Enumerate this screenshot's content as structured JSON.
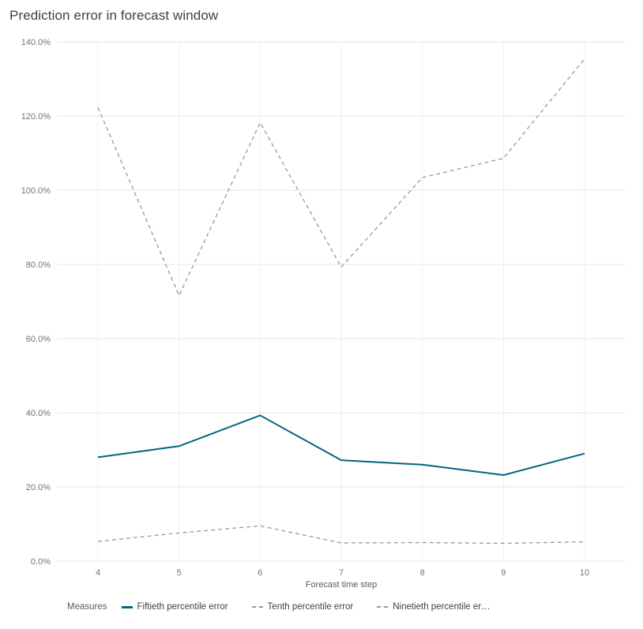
{
  "title": "Prediction error in forecast window",
  "chart_data": {
    "type": "line",
    "title": "Prediction error in forecast window",
    "x": [
      4,
      5,
      6,
      7,
      8,
      9,
      10
    ],
    "xlabel": "Forecast time step",
    "ylabel": "",
    "ylim": [
      0,
      140
    ],
    "ytick_step": 20,
    "ytick_format": "percent-one-decimal",
    "grid": true,
    "legend_position": "bottom",
    "legend_title": "Measures",
    "series": [
      {
        "name": "Fiftieth percentile error",
        "legend_label": "Fiftieth percentile error",
        "color": "#006580",
        "dash": "solid",
        "values": [
          28.0,
          31.0,
          39.3,
          27.2,
          26.0,
          23.2,
          29.0
        ]
      },
      {
        "name": "Tenth percentile error",
        "legend_label": "Tenth percentile error",
        "color": "#999999",
        "dash": "dashed",
        "values": [
          5.3,
          7.6,
          9.5,
          4.9,
          5.0,
          4.8,
          5.2
        ]
      },
      {
        "name": "Ninetieth percentile error",
        "legend_label": "Ninetieth percentile er…",
        "color": "#999999",
        "dash": "dashed",
        "values": [
          122.3,
          71.6,
          118.2,
          79.3,
          103.4,
          108.6,
          135.4
        ]
      }
    ]
  }
}
